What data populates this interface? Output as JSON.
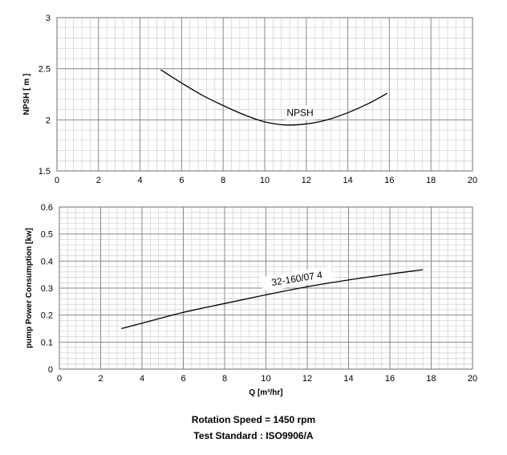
{
  "chart_data": [
    {
      "type": "line",
      "title": "",
      "xlabel": "",
      "ylabel": "NPSH [ m ]",
      "xlim": [
        0,
        20
      ],
      "ylim": [
        1.5,
        3
      ],
      "x_ticks": [
        "0",
        "2",
        "4",
        "6",
        "8",
        "10",
        "12",
        "14",
        "16",
        "18",
        "20"
      ],
      "y_ticks": [
        "1.5",
        "2",
        "2.5",
        "3"
      ],
      "grid": true,
      "series": [
        {
          "name": "NPSH",
          "x": [
            5.0,
            6.0,
            7.0,
            8.0,
            9.0,
            10.0,
            11.0,
            12.0,
            13.0,
            14.0,
            15.0,
            15.9
          ],
          "y": [
            2.49,
            2.36,
            2.24,
            2.14,
            2.05,
            1.98,
            1.95,
            1.96,
            2.0,
            2.07,
            2.16,
            2.26
          ]
        }
      ]
    },
    {
      "type": "line",
      "title": "",
      "xlabel": "Q [m³/hr]",
      "ylabel": "pump Power Consumption [kw]",
      "xlim": [
        0,
        20
      ],
      "ylim": [
        0,
        0.6
      ],
      "x_ticks": [
        "0",
        "2",
        "4",
        "6",
        "8",
        "10",
        "12",
        "14",
        "16",
        "18",
        "20"
      ],
      "y_ticks": [
        "0",
        "0.1",
        "0.2",
        "0.3",
        "0.4",
        "0.5",
        "0.6"
      ],
      "grid": true,
      "series": [
        {
          "name": "32-160/07  4",
          "x": [
            3.0,
            4.0,
            6.0,
            8.0,
            10.0,
            12.0,
            14.0,
            16.0,
            17.6
          ],
          "y": [
            0.15,
            0.17,
            0.21,
            0.243,
            0.275,
            0.305,
            0.33,
            0.352,
            0.368
          ]
        }
      ]
    }
  ],
  "footer": {
    "speed": "Rotation Speed = 1450 rpm",
    "standard": "Test Standard : ISO9906/A"
  }
}
